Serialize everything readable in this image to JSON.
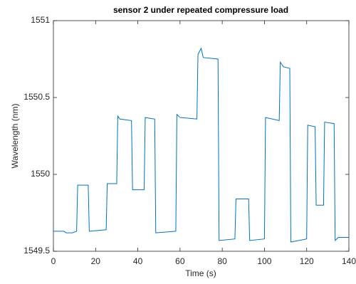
{
  "chart_data": {
    "type": "line",
    "title": "sensor 2 under repeated compressure load",
    "x_label": "Time (s)",
    "y_label": "Wavelength (nm)",
    "x": [
      0,
      5,
      6,
      9,
      11,
      11.5,
      16.5,
      17,
      25,
      25.5,
      30,
      30.5,
      31.5,
      37,
      37.5,
      43,
      43.5,
      48,
      48.5,
      58,
      58.5,
      60,
      68,
      68.5,
      70,
      71,
      78,
      78.5,
      86,
      86.5,
      92.5,
      93,
      100,
      100.5,
      107,
      107.5,
      109,
      112,
      112.5,
      120,
      120.5,
      124,
      124.5,
      128,
      128.5,
      133,
      133.5,
      135,
      140
    ],
    "values": [
      1549.63,
      1549.63,
      1549.62,
      1549.62,
      1549.63,
      1549.93,
      1549.93,
      1549.63,
      1549.64,
      1549.94,
      1549.94,
      1550.38,
      1550.36,
      1550.35,
      1549.9,
      1549.9,
      1550.37,
      1550.36,
      1549.62,
      1549.63,
      1550.39,
      1550.37,
      1550.36,
      1550.78,
      1550.82,
      1550.76,
      1550.75,
      1549.57,
      1549.58,
      1549.84,
      1549.84,
      1549.57,
      1549.58,
      1550.37,
      1550.35,
      1550.73,
      1550.7,
      1550.69,
      1549.56,
      1549.58,
      1550.32,
      1550.31,
      1549.8,
      1549.8,
      1550.34,
      1550.33,
      1549.57,
      1549.59,
      1549.59
    ],
    "color": "#0072bd",
    "xlim": [
      0,
      140
    ],
    "xticks": [
      0,
      20,
      40,
      60,
      80,
      100,
      120,
      140
    ],
    "ylim": [
      1549.5,
      1551
    ],
    "yticks": [
      1549.5,
      1550,
      1550.5,
      1551
    ]
  }
}
